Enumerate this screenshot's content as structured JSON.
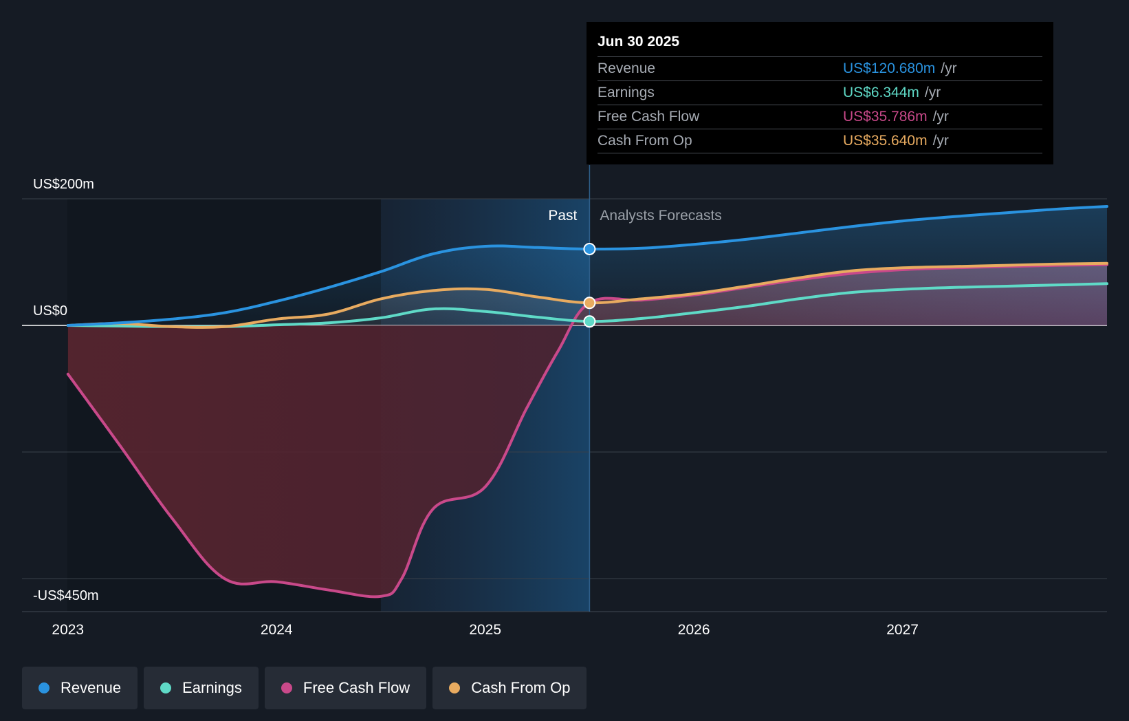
{
  "colors": {
    "revenue": "#2a93e0",
    "earnings": "#5fdac7",
    "fcf": "#c9498a",
    "cfo": "#e8ab60",
    "background": "#151b24"
  },
  "tooltip": {
    "date": "Jun 30 2025",
    "rows": [
      {
        "label": "Revenue",
        "value": "US$120.680m",
        "unit": "/yr",
        "color": "#2a93e0"
      },
      {
        "label": "Earnings",
        "value": "US$6.344m",
        "unit": "/yr",
        "color": "#5fdac7"
      },
      {
        "label": "Free Cash Flow",
        "value": "US$35.786m",
        "unit": "/yr",
        "color": "#c9498a"
      },
      {
        "label": "Cash From Op",
        "value": "US$35.640m",
        "unit": "/yr",
        "color": "#e8ab60"
      }
    ]
  },
  "legend": [
    {
      "label": "Revenue",
      "color": "#2a93e0"
    },
    {
      "label": "Earnings",
      "color": "#5fdac7"
    },
    {
      "label": "Free Cash Flow",
      "color": "#c9498a"
    },
    {
      "label": "Cash From Op",
      "color": "#e8ab60"
    }
  ],
  "chart_data": {
    "type": "line",
    "title": "",
    "xlabel": "",
    "ylabel": "",
    "ylim": [
      -450,
      200
    ],
    "xlim": [
      2022.78,
      2027.98
    ],
    "y_axis_labels": [
      {
        "text": "US$200m",
        "value": 200
      },
      {
        "text": "US$0",
        "value": 0
      },
      {
        "text": "-US$450m",
        "value": -450
      }
    ],
    "gridlines": [
      200,
      0,
      -200,
      -400
    ],
    "x_ticks": [
      {
        "text": "2023",
        "value": 2023
      },
      {
        "text": "2024",
        "value": 2024
      },
      {
        "text": "2025",
        "value": 2025
      },
      {
        "text": "2026",
        "value": 2026
      },
      {
        "text": "2027",
        "value": 2027
      }
    ],
    "divider_x": 2025.5,
    "highlight_start_x": 2024.5,
    "past_label": "Past",
    "forecast_label": "Analysts Forecasts",
    "series": [
      {
        "name": "Revenue",
        "key": "revenue",
        "points": [
          [
            2023.0,
            0
          ],
          [
            2023.25,
            4
          ],
          [
            2023.5,
            10
          ],
          [
            2023.75,
            20
          ],
          [
            2024.0,
            38
          ],
          [
            2024.25,
            60
          ],
          [
            2024.5,
            85
          ],
          [
            2024.75,
            113
          ],
          [
            2025.0,
            125
          ],
          [
            2025.25,
            123
          ],
          [
            2025.5,
            120.7
          ],
          [
            2025.75,
            122
          ],
          [
            2026.0,
            128
          ],
          [
            2026.25,
            136
          ],
          [
            2026.5,
            146
          ],
          [
            2026.75,
            156
          ],
          [
            2027.0,
            165
          ],
          [
            2027.25,
            172
          ],
          [
            2027.5,
            178
          ],
          [
            2027.75,
            184
          ],
          [
            2027.98,
            188
          ]
        ]
      },
      {
        "name": "Earnings",
        "key": "earnings",
        "points": [
          [
            2023.0,
            0
          ],
          [
            2023.25,
            -1
          ],
          [
            2023.5,
            -2
          ],
          [
            2023.75,
            -2
          ],
          [
            2024.0,
            1
          ],
          [
            2024.25,
            4
          ],
          [
            2024.5,
            12
          ],
          [
            2024.75,
            26
          ],
          [
            2025.0,
            22
          ],
          [
            2025.25,
            13
          ],
          [
            2025.5,
            6.3
          ],
          [
            2025.75,
            11
          ],
          [
            2026.0,
            20
          ],
          [
            2026.25,
            30
          ],
          [
            2026.5,
            42
          ],
          [
            2026.75,
            52
          ],
          [
            2027.0,
            57
          ],
          [
            2027.25,
            60
          ],
          [
            2027.5,
            62
          ],
          [
            2027.75,
            64
          ],
          [
            2027.98,
            66
          ]
        ]
      },
      {
        "name": "Free Cash Flow",
        "key": "fcf",
        "points": [
          [
            2023.0,
            -77
          ],
          [
            2023.25,
            -190
          ],
          [
            2023.5,
            -305
          ],
          [
            2023.75,
            -400
          ],
          [
            2024.0,
            -405
          ],
          [
            2024.25,
            -418
          ],
          [
            2024.5,
            -428
          ],
          [
            2024.6,
            -400
          ],
          [
            2024.75,
            -290
          ],
          [
            2025.0,
            -255
          ],
          [
            2025.2,
            -130
          ],
          [
            2025.35,
            -40
          ],
          [
            2025.5,
            35.8
          ],
          [
            2025.75,
            40
          ],
          [
            2026.0,
            48
          ],
          [
            2026.25,
            60
          ],
          [
            2026.5,
            72
          ],
          [
            2026.75,
            82
          ],
          [
            2027.0,
            88
          ],
          [
            2027.25,
            91
          ],
          [
            2027.5,
            93
          ],
          [
            2027.75,
            95
          ],
          [
            2027.98,
            96
          ]
        ]
      },
      {
        "name": "Cash From Op",
        "key": "cfo",
        "points": [
          [
            2023.0,
            0
          ],
          [
            2023.25,
            3
          ],
          [
            2023.5,
            -2
          ],
          [
            2023.75,
            -2
          ],
          [
            2024.0,
            10
          ],
          [
            2024.25,
            18
          ],
          [
            2024.5,
            42
          ],
          [
            2024.75,
            55
          ],
          [
            2025.0,
            57
          ],
          [
            2025.25,
            45
          ],
          [
            2025.5,
            35.6
          ],
          [
            2025.75,
            42
          ],
          [
            2026.0,
            50
          ],
          [
            2026.25,
            62
          ],
          [
            2026.5,
            75
          ],
          [
            2026.75,
            86
          ],
          [
            2027.0,
            91
          ],
          [
            2027.25,
            93
          ],
          [
            2027.5,
            95
          ],
          [
            2027.75,
            97
          ],
          [
            2027.98,
            98
          ]
        ]
      }
    ],
    "markers": [
      {
        "series": "revenue",
        "x": 2025.5,
        "y": 120.7
      },
      {
        "series": "cfo",
        "x": 2025.5,
        "y": 35.6
      },
      {
        "series": "earnings",
        "x": 2025.5,
        "y": 6.3
      }
    ]
  }
}
